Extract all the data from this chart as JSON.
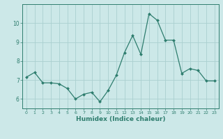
{
  "x": [
    0,
    1,
    2,
    3,
    4,
    5,
    6,
    7,
    8,
    9,
    10,
    11,
    12,
    13,
    14,
    15,
    16,
    17,
    18,
    19,
    20,
    21,
    22,
    23
  ],
  "y": [
    7.15,
    7.4,
    6.85,
    6.85,
    6.8,
    6.55,
    6.0,
    6.25,
    6.35,
    5.85,
    6.45,
    7.25,
    8.45,
    9.35,
    8.35,
    10.5,
    10.15,
    9.1,
    9.1,
    7.35,
    7.6,
    7.5,
    6.95,
    6.95
  ],
  "xlabel": "Humidex (Indice chaleur)",
  "xlim": [
    -0.5,
    23.5
  ],
  "ylim": [
    5.5,
    11.0
  ],
  "yticks": [
    6,
    7,
    8,
    9,
    10
  ],
  "xticks": [
    0,
    1,
    2,
    3,
    4,
    5,
    6,
    7,
    8,
    9,
    10,
    11,
    12,
    13,
    14,
    15,
    16,
    17,
    18,
    19,
    20,
    21,
    22,
    23
  ],
  "line_color": "#2e7d6e",
  "marker_color": "#2e7d6e",
  "bg_color": "#cce8e8",
  "grid_color": "#aad0d0",
  "axis_color": "#2e7d6e",
  "tick_color": "#2e7d6e",
  "label_color": "#2e7d6e"
}
